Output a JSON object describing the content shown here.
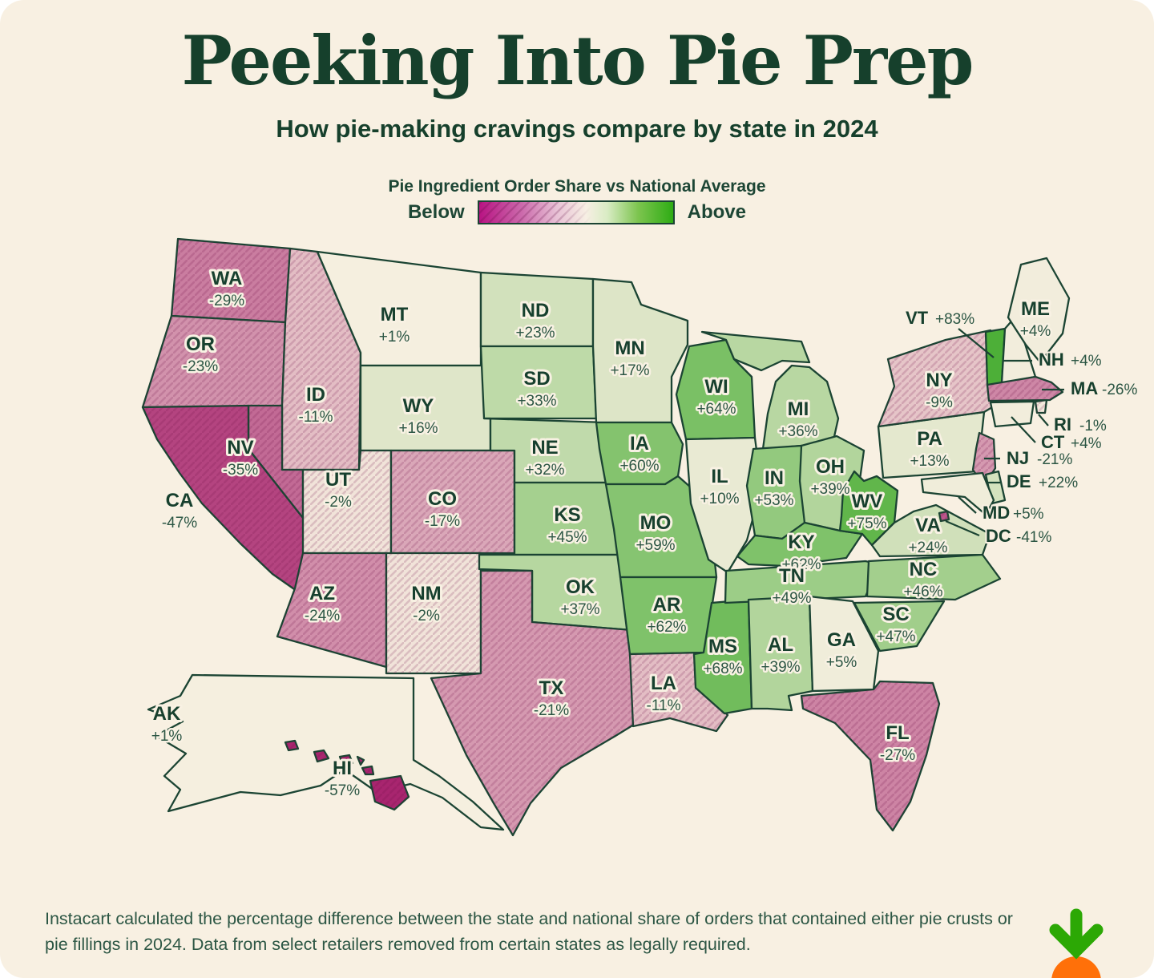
{
  "title": "Peeking Into Pie Prep",
  "subtitle": "How pie-making cravings compare by state in 2024",
  "legend": {
    "title": "Pie Ingredient Order Share vs National Average",
    "below": "Below",
    "above": "Above"
  },
  "colors": {
    "background": "#F8F0E2",
    "outline": "#1B4433",
    "text_dark": "#16402C",
    "cream_mid": "#F6EFE0",
    "magenta_end": "#A8256F",
    "green_end": "#3CA827",
    "legend_magenta": "#B81383",
    "legend_green": "#2EAC14",
    "logo_green": "#2CA805",
    "logo_orange": "#FF7009"
  },
  "footnote": "Instacart calculated the percentage difference between the state and national share of orders that contained either pie crusts or pie fillings in 2024. Data from select retailers removed from certain states as legally required.",
  "chart_data": {
    "type": "heatmap",
    "subtype": "us-choropleth-map",
    "title": "Pie Ingredient Order Share vs National Average",
    "unit": "% vs national average",
    "legend_position": "top-center",
    "colorscale": {
      "below_label": "Below",
      "above_label": "Above",
      "below_color": "#A8256F",
      "mid_color": "#F6EFE0",
      "above_color": "#3CA827"
    },
    "states": [
      {
        "abbr": "WA",
        "value": -29,
        "display": "-29%"
      },
      {
        "abbr": "OR",
        "value": -23,
        "display": "-23%"
      },
      {
        "abbr": "ID",
        "value": -11,
        "display": "-11%"
      },
      {
        "abbr": "MT",
        "value": 1,
        "display": "+1%"
      },
      {
        "abbr": "WY",
        "value": 16,
        "display": "+16%"
      },
      {
        "abbr": "NV",
        "value": -35,
        "display": "-35%"
      },
      {
        "abbr": "CA",
        "value": -47,
        "display": "-47%"
      },
      {
        "abbr": "UT",
        "value": -2,
        "display": "-2%"
      },
      {
        "abbr": "CO",
        "value": -17,
        "display": "-17%"
      },
      {
        "abbr": "AZ",
        "value": -24,
        "display": "-24%"
      },
      {
        "abbr": "NM",
        "value": -2,
        "display": "-2%"
      },
      {
        "abbr": "ND",
        "value": 23,
        "display": "+23%"
      },
      {
        "abbr": "SD",
        "value": 33,
        "display": "+33%"
      },
      {
        "abbr": "NE",
        "value": 32,
        "display": "+32%"
      },
      {
        "abbr": "KS",
        "value": 45,
        "display": "+45%"
      },
      {
        "abbr": "OK",
        "value": 37,
        "display": "+37%"
      },
      {
        "abbr": "TX",
        "value": -21,
        "display": "-21%"
      },
      {
        "abbr": "MN",
        "value": 17,
        "display": "+17%"
      },
      {
        "abbr": "IA",
        "value": 60,
        "display": "+60%"
      },
      {
        "abbr": "MO",
        "value": 59,
        "display": "+59%"
      },
      {
        "abbr": "AR",
        "value": 62,
        "display": "+62%"
      },
      {
        "abbr": "LA",
        "value": -11,
        "display": "-11%"
      },
      {
        "abbr": "WI",
        "value": 64,
        "display": "+64%"
      },
      {
        "abbr": "IL",
        "value": 10,
        "display": "+10%"
      },
      {
        "abbr": "MS",
        "value": 68,
        "display": "+68%"
      },
      {
        "abbr": "MI",
        "value": 36,
        "display": "+36%"
      },
      {
        "abbr": "IN",
        "value": 53,
        "display": "+53%"
      },
      {
        "abbr": "OH",
        "value": 39,
        "display": "+39%"
      },
      {
        "abbr": "KY",
        "value": 62,
        "display": "+62%"
      },
      {
        "abbr": "TN",
        "value": 49,
        "display": "+49%"
      },
      {
        "abbr": "WV",
        "value": 75,
        "display": "+75%"
      },
      {
        "abbr": "VA",
        "value": 24,
        "display": "+24%"
      },
      {
        "abbr": "NC",
        "value": 46,
        "display": "+46%"
      },
      {
        "abbr": "SC",
        "value": 47,
        "display": "+47%"
      },
      {
        "abbr": "AL",
        "value": 39,
        "display": "+39%"
      },
      {
        "abbr": "GA",
        "value": 5,
        "display": "+5%"
      },
      {
        "abbr": "FL",
        "value": -27,
        "display": "-27%"
      },
      {
        "abbr": "PA",
        "value": 13,
        "display": "+13%"
      },
      {
        "abbr": "NY",
        "value": -9,
        "display": "-9%"
      },
      {
        "abbr": "VT",
        "value": 83,
        "display": "+83%"
      },
      {
        "abbr": "NH",
        "value": 4,
        "display": "+4%"
      },
      {
        "abbr": "ME",
        "value": 4,
        "display": "+4%"
      },
      {
        "abbr": "MA",
        "value": -26,
        "display": "-26%"
      },
      {
        "abbr": "RI",
        "value": -1,
        "display": "-1%"
      },
      {
        "abbr": "CT",
        "value": 4,
        "display": "+4%"
      },
      {
        "abbr": "NJ",
        "value": -21,
        "display": "-21%"
      },
      {
        "abbr": "DE",
        "value": 22,
        "display": "+22%"
      },
      {
        "abbr": "MD",
        "value": 5,
        "display": "+5%"
      },
      {
        "abbr": "DC",
        "value": -41,
        "display": "-41%"
      },
      {
        "abbr": "AK",
        "value": 1,
        "display": "+1%"
      },
      {
        "abbr": "HI",
        "value": -57,
        "display": "-57%"
      }
    ]
  }
}
